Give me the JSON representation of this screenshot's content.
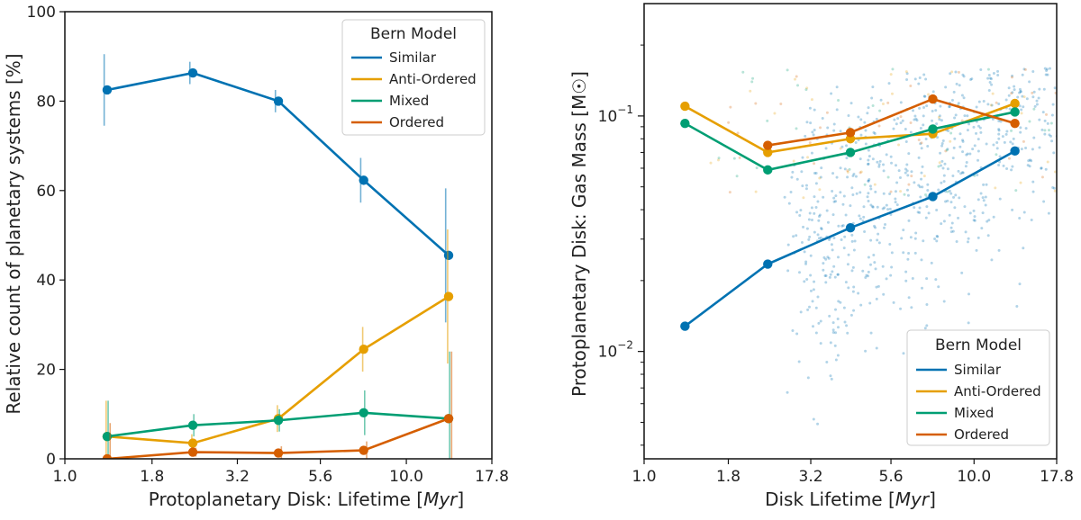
{
  "chart_data": [
    {
      "type": "line",
      "xscale": "log",
      "xlim": [
        1.0,
        17.8
      ],
      "ylim": [
        0,
        100
      ],
      "xticks": [
        "1.0",
        "1.8",
        "3.2",
        "5.6",
        "10.0",
        "17.8"
      ],
      "yticks": [
        "0",
        "20",
        "40",
        "60",
        "80",
        "100"
      ],
      "xlabel": "Protoplanetary Disk: Lifetime [Myr]",
      "ylabel": "Relative count of planetary systems [%]",
      "legend": {
        "title": "Bern Model",
        "placement": "top-right"
      },
      "series": [
        {
          "name": "Similar",
          "color": "#0072b2",
          "x": [
            1.33,
            2.37,
            4.22,
            7.5,
            13.3
          ],
          "y": [
            82.5,
            86.3,
            80.0,
            62.3,
            45.5
          ],
          "err": [
            8,
            2.5,
            2.5,
            5,
            15
          ]
        },
        {
          "name": "Anti-Ordered",
          "color": "#e69f00",
          "x": [
            1.33,
            2.37,
            4.22,
            7.5,
            13.3
          ],
          "y": [
            5.0,
            3.5,
            9.0,
            24.5,
            36.3
          ],
          "err": [
            8,
            2,
            3,
            5,
            15
          ]
        },
        {
          "name": "Mixed",
          "color": "#009e73",
          "x": [
            1.33,
            2.37,
            4.22,
            7.5,
            13.3
          ],
          "y": [
            5.0,
            7.5,
            8.6,
            10.3,
            9.0
          ],
          "err": [
            8,
            2.5,
            2.5,
            5,
            15
          ]
        },
        {
          "name": "Ordered",
          "color": "#d55e00",
          "x": [
            1.33,
            2.37,
            4.22,
            7.5,
            13.3
          ],
          "y": [
            0.0,
            1.5,
            1.3,
            1.9,
            9.0
          ],
          "err": [
            8,
            1,
            1.5,
            2,
            15
          ]
        }
      ]
    },
    {
      "type": "scatter",
      "xscale": "log",
      "yscale": "log",
      "xlim": [
        1.0,
        17.8
      ],
      "ylim": [
        0.0035,
        0.3
      ],
      "xticks": [
        "1.0",
        "1.8",
        "3.2",
        "5.6",
        "10.0",
        "17.8"
      ],
      "yticks": [
        "10^-2",
        "10^-1"
      ],
      "xlabel": "Disk Lifetime [Myr]",
      "ylabel": "Protoplanetary Disk: Gas Mass [M☉]",
      "legend": {
        "title": "Bern Model",
        "placement": "bottom-right"
      },
      "series": [
        {
          "name": "Similar",
          "color": "#0072b2",
          "x": [
            1.33,
            2.37,
            4.22,
            7.5,
            13.3
          ],
          "y": [
            0.0128,
            0.0235,
            0.0335,
            0.0455,
            0.071
          ]
        },
        {
          "name": "Anti-Ordered",
          "color": "#e69f00",
          "x": [
            1.33,
            2.37,
            4.22,
            7.5,
            13.3
          ],
          "y": [
            0.11,
            0.07,
            0.08,
            0.084,
            0.113
          ]
        },
        {
          "name": "Mixed",
          "color": "#009e73",
          "x": [
            1.33,
            2.37,
            4.22,
            7.5,
            13.3
          ],
          "y": [
            0.093,
            0.059,
            0.07,
            0.088,
            0.104
          ]
        },
        {
          "name": "Ordered",
          "color": "#d55e00",
          "x": [
            2.37,
            4.22,
            7.5,
            13.3
          ],
          "y": [
            0.075,
            0.085,
            0.118,
            0.093
          ]
        }
      ]
    }
  ]
}
